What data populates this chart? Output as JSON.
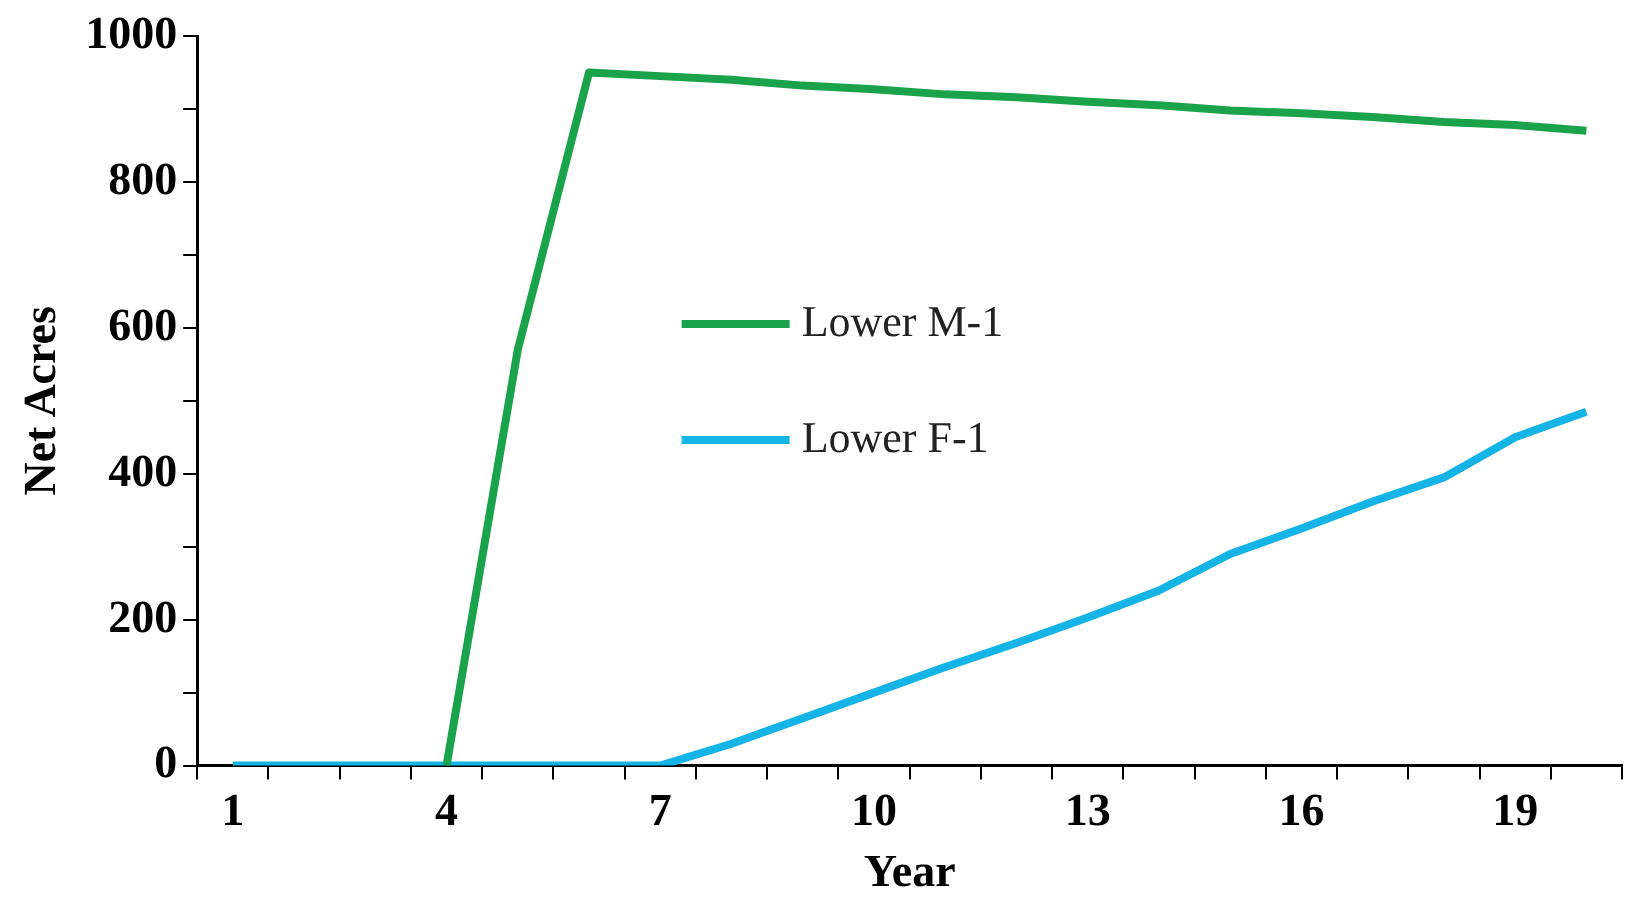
{
  "chart_data": {
    "type": "line",
    "xlabel": "Year",
    "ylabel": "Net Acres",
    "categories": [
      "1",
      null,
      null,
      "4",
      null,
      null,
      "7",
      null,
      null,
      "10",
      null,
      null,
      "13",
      null,
      null,
      "16",
      null,
      null,
      "19",
      null
    ],
    "series": [
      {
        "name": "Lower M-1",
        "color": "#1aa34a",
        "values": [
          null,
          null,
          null,
          0,
          570,
          950,
          945,
          940,
          932,
          927,
          920,
          916,
          910,
          905,
          898,
          894,
          889,
          882,
          878,
          870
        ]
      },
      {
        "name": "Lower F-1",
        "color": "#14b4e6",
        "values": [
          0,
          0,
          0,
          0,
          0,
          0,
          0,
          30,
          65,
          100,
          135,
          168,
          203,
          240,
          290,
          325,
          362,
          395,
          450,
          485
        ]
      }
    ],
    "ylim": [
      0,
      1000
    ],
    "yticks": [
      0,
      {
        "value": 100,
        "label": null
      },
      200,
      {
        "value": 300,
        "label": null
      },
      400,
      {
        "value": 500,
        "label": null
      },
      600,
      {
        "value": 700,
        "label": null
      },
      800,
      {
        "value": 900,
        "label": null
      },
      1000
    ],
    "grid": false,
    "legend": "center",
    "marker": "none",
    "line_style": "solid"
  }
}
